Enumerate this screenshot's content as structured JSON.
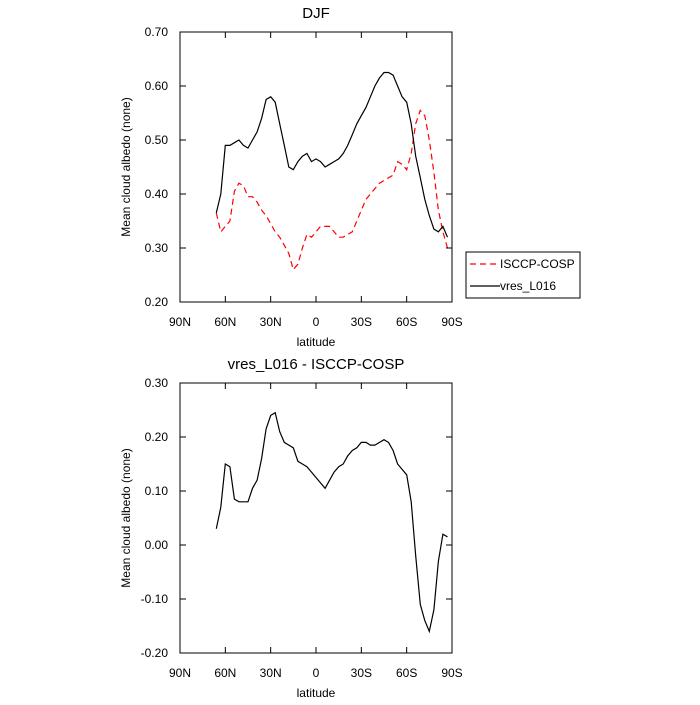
{
  "chart_data": [
    {
      "type": "line",
      "title": "DJF",
      "x_label": "latitude",
      "y_label": "Mean cloud albedo (none)",
      "x": [
        66,
        63,
        60,
        57,
        54,
        51,
        48,
        45,
        42,
        39,
        36,
        33,
        30,
        27,
        24,
        21,
        18,
        15,
        12,
        9,
        6,
        3,
        0,
        -3,
        -6,
        -9,
        -12,
        -15,
        -18,
        -21,
        -24,
        -27,
        -30,
        -33,
        -36,
        -39,
        -42,
        -45,
        -48,
        -51,
        -54,
        -57,
        -60,
        -63,
        -66,
        -69,
        -72,
        -75,
        -78,
        -81,
        -84,
        -87
      ],
      "series": [
        {
          "name": "ISCCP-COSP",
          "color": "#ff0000",
          "dash": true,
          "values": [
            0.365,
            0.33,
            0.34,
            0.35,
            0.405,
            0.42,
            0.415,
            0.395,
            0.395,
            0.385,
            0.37,
            0.36,
            0.345,
            0.33,
            0.32,
            0.305,
            0.29,
            0.26,
            0.27,
            0.3,
            0.325,
            0.32,
            0.33,
            0.34,
            0.34,
            0.34,
            0.33,
            0.32,
            0.32,
            0.325,
            0.33,
            0.35,
            0.37,
            0.39,
            0.4,
            0.41,
            0.42,
            0.425,
            0.43,
            0.435,
            0.46,
            0.455,
            0.445,
            0.475,
            0.53,
            0.555,
            0.545,
            0.5,
            0.44,
            0.37,
            0.33,
            0.3
          ]
        },
        {
          "name": "vres_L016",
          "color": "#000000",
          "dash": false,
          "values": [
            0.365,
            0.4,
            0.49,
            0.49,
            0.495,
            0.5,
            0.49,
            0.485,
            0.5,
            0.515,
            0.54,
            0.575,
            0.58,
            0.57,
            0.53,
            0.49,
            0.45,
            0.445,
            0.46,
            0.47,
            0.475,
            0.46,
            0.465,
            0.46,
            0.45,
            0.455,
            0.46,
            0.465,
            0.475,
            0.49,
            0.51,
            0.53,
            0.545,
            0.56,
            0.58,
            0.6,
            0.615,
            0.625,
            0.625,
            0.62,
            0.6,
            0.58,
            0.57,
            0.53,
            0.47,
            0.43,
            0.39,
            0.36,
            0.335,
            0.33,
            0.34,
            0.32
          ]
        }
      ],
      "xlim": [
        90,
        -90
      ],
      "xticks": [
        {
          "value": 90,
          "label": "90N"
        },
        {
          "value": 60,
          "label": "60N"
        },
        {
          "value": 30,
          "label": "30N"
        },
        0,
        {
          "value": -30,
          "label": "30S"
        },
        {
          "value": -60,
          "label": "60S"
        },
        {
          "value": -90,
          "label": "90S"
        }
      ],
      "ylim": [
        0.2,
        0.7
      ],
      "yticks": [
        {
          "value": 0.2,
          "label": "0.20"
        },
        {
          "value": 0.3,
          "label": "0.30"
        },
        {
          "value": 0.4,
          "label": "0.40"
        },
        {
          "value": 0.5,
          "label": "0.50"
        },
        {
          "value": 0.6,
          "label": "0.60"
        },
        {
          "value": 0.7,
          "label": "0.70"
        }
      ],
      "legend": "outside-right"
    },
    {
      "type": "line",
      "title": "vres_L016 - ISCCP-COSP",
      "x_label": "latitude",
      "y_label": "Mean cloud albedo (none)",
      "x": [
        66,
        63,
        60,
        57,
        54,
        51,
        48,
        45,
        42,
        39,
        36,
        33,
        30,
        27,
        24,
        21,
        18,
        15,
        12,
        9,
        6,
        3,
        0,
        -3,
        -6,
        -9,
        -12,
        -15,
        -18,
        -21,
        -24,
        -27,
        -30,
        -33,
        -36,
        -39,
        -42,
        -45,
        -48,
        -51,
        -54,
        -57,
        -60,
        -63,
        -66,
        -69,
        -72,
        -75,
        -78,
        -81,
        -84,
        -87
      ],
      "series": [
        {
          "color": "#000000",
          "dash": false,
          "values": [
            0.03,
            0.07,
            0.15,
            0.145,
            0.085,
            0.08,
            0.08,
            0.08,
            0.105,
            0.12,
            0.16,
            0.215,
            0.24,
            0.245,
            0.21,
            0.19,
            0.185,
            0.18,
            0.155,
            0.15,
            0.145,
            0.135,
            0.125,
            0.115,
            0.105,
            0.12,
            0.135,
            0.145,
            0.15,
            0.165,
            0.175,
            0.18,
            0.19,
            0.19,
            0.185,
            0.185,
            0.19,
            0.195,
            0.19,
            0.175,
            0.15,
            0.14,
            0.13,
            0.08,
            -0.02,
            -0.11,
            -0.14,
            -0.16,
            -0.12,
            -0.03,
            0.02,
            0.015
          ]
        }
      ],
      "xlim": [
        90,
        -90
      ],
      "xticks": [
        {
          "value": 90,
          "label": "90N"
        },
        {
          "value": 60,
          "label": "60N"
        },
        {
          "value": 30,
          "label": "30N"
        },
        0,
        {
          "value": -30,
          "label": "30S"
        },
        {
          "value": -60,
          "label": "60S"
        },
        {
          "value": -90,
          "label": "90S"
        }
      ],
      "ylim": [
        -0.2,
        0.3
      ],
      "yticks": [
        {
          "value": -0.2,
          "label": "-0.20"
        },
        {
          "value": -0.1,
          "label": "-0.10"
        },
        {
          "value": 0,
          "label": "0.00"
        },
        {
          "value": 0.1,
          "label": "0.10"
        },
        {
          "value": 0.2,
          "label": "0.20"
        },
        {
          "value": 0.3,
          "label": "0.30"
        }
      ]
    }
  ]
}
